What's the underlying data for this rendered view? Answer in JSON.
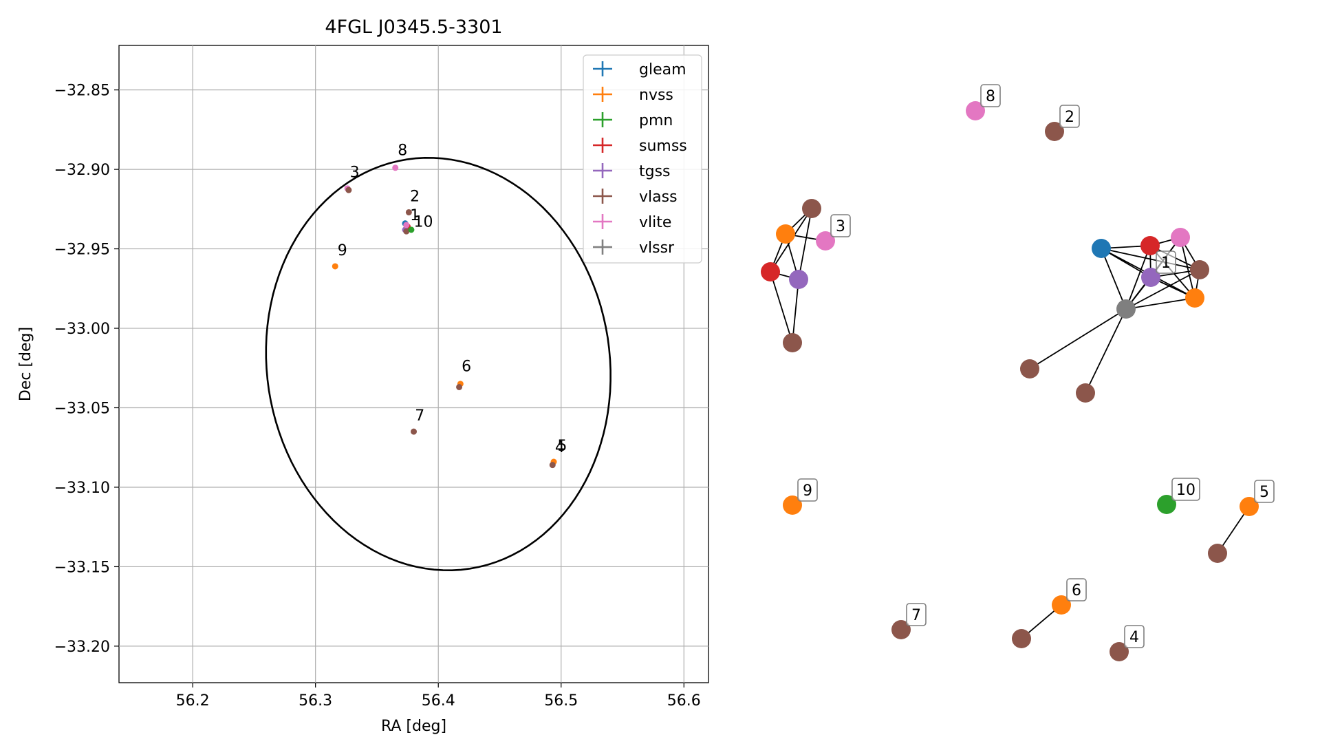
{
  "chart_data": [
    {
      "type": "scatter",
      "title": "4FGL J0345.5-3301",
      "xlabel": "RA [deg]",
      "ylabel": "Dec [deg]",
      "xlim": [
        56.14,
        56.62
      ],
      "ylim": [
        -33.223,
        -32.822
      ],
      "xticks": [
        56.2,
        56.3,
        56.4,
        56.5,
        56.6
      ],
      "yticks": [
        -32.85,
        -32.9,
        -32.95,
        -33.0,
        -33.05,
        -33.1,
        -33.15,
        -33.2
      ],
      "xtick_labels": [
        "56.2",
        "56.3",
        "56.4",
        "56.5",
        "56.6"
      ],
      "ytick_labels": [
        "−32.85",
        "−32.90",
        "−32.95",
        "−33.00",
        "−33.05",
        "−33.10",
        "−33.15",
        "−33.20"
      ],
      "grid": true,
      "legend_position": "top-right",
      "legend": [
        {
          "name": "gleam",
          "color": "#1f77b4"
        },
        {
          "name": "nvss",
          "color": "#ff7f0e"
        },
        {
          "name": "pmn",
          "color": "#2ca02c"
        },
        {
          "name": "sumss",
          "color": "#d62728"
        },
        {
          "name": "tgss",
          "color": "#9467bd"
        },
        {
          "name": "vlass",
          "color": "#8c564b"
        },
        {
          "name": "vlite",
          "color": "#e377c2"
        },
        {
          "name": "vlssr",
          "color": "#7f7f7f"
        }
      ],
      "ellipse": {
        "center": [
          56.4,
          -33.0225
        ],
        "semi_ra": 0.1415,
        "semi_dec": 0.1285,
        "angle_deg": -18
      },
      "points": [
        {
          "ra": 56.373,
          "dec": -32.934,
          "color": "#1f77b4"
        },
        {
          "ra": 56.374,
          "dec": -32.937,
          "color": "#ff7f0e"
        },
        {
          "ra": 56.375,
          "dec": -32.936,
          "color": "#d62728"
        },
        {
          "ra": 56.373,
          "dec": -32.938,
          "color": "#9467bd"
        },
        {
          "ra": 56.374,
          "dec": -32.935,
          "color": "#e377c2"
        },
        {
          "ra": 56.374,
          "dec": -32.939,
          "color": "#8c564b"
        },
        {
          "ra": 56.378,
          "dec": -32.938,
          "color": "#2ca02c"
        },
        {
          "ra": 56.376,
          "dec": -32.927,
          "color": "#8c564b"
        },
        {
          "ra": 56.326,
          "dec": -32.912,
          "color": "#e377c2"
        },
        {
          "ra": 56.327,
          "dec": -32.913,
          "color": "#8c564b"
        },
        {
          "ra": 56.365,
          "dec": -32.899,
          "color": "#e377c2"
        },
        {
          "ra": 56.316,
          "dec": -32.961,
          "color": "#ff7f0e"
        },
        {
          "ra": 56.418,
          "dec": -33.035,
          "color": "#ff7f0e"
        },
        {
          "ra": 56.417,
          "dec": -33.037,
          "color": "#8c564b"
        },
        {
          "ra": 56.38,
          "dec": -33.065,
          "color": "#8c564b"
        },
        {
          "ra": 56.494,
          "dec": -33.084,
          "color": "#ff7f0e"
        },
        {
          "ra": 56.493,
          "dec": -33.086,
          "color": "#8c564b"
        }
      ],
      "labels": [
        {
          "text": "1",
          "ra": 56.377,
          "dec": -32.932
        },
        {
          "text": "2",
          "ra": 56.377,
          "dec": -32.92
        },
        {
          "text": "3",
          "ra": 56.328,
          "dec": -32.905
        },
        {
          "text": "4",
          "ra": 56.495,
          "dec": -33.078
        },
        {
          "text": "5",
          "ra": 56.497,
          "dec": -33.077
        },
        {
          "text": "6",
          "ra": 56.419,
          "dec": -33.027
        },
        {
          "text": "7",
          "ra": 56.381,
          "dec": -33.058
        },
        {
          "text": "8",
          "ra": 56.367,
          "dec": -32.891
        },
        {
          "text": "9",
          "ra": 56.318,
          "dec": -32.954
        },
        {
          "text": "10",
          "ra": 56.38,
          "dec": -32.936
        }
      ]
    },
    {
      "type": "network",
      "nodes": [
        {
          "id": "a1",
          "color": "#1f77b4"
        },
        {
          "id": "a2",
          "color": "#d62728"
        },
        {
          "id": "a3",
          "color": "#e377c2"
        },
        {
          "id": "a4",
          "color": "#9467bd"
        },
        {
          "id": "a5",
          "color": "#8c564b"
        },
        {
          "id": "a6",
          "color": "#ff7f0e"
        },
        {
          "id": "a7",
          "color": "#7f7f7f"
        },
        {
          "id": "a8",
          "color": "#8c564b"
        },
        {
          "id": "a9",
          "color": "#8c564b"
        },
        {
          "id": "b1",
          "color": "#8c564b"
        },
        {
          "id": "b2",
          "color": "#ff7f0e"
        },
        {
          "id": "b3",
          "color": "#e377c2"
        },
        {
          "id": "b4",
          "color": "#d62728"
        },
        {
          "id": "b5",
          "color": "#9467bd"
        },
        {
          "id": "b6",
          "color": "#8c564b"
        },
        {
          "id": "n8",
          "color": "#e377c2"
        },
        {
          "id": "n2",
          "color": "#8c564b"
        },
        {
          "id": "n9",
          "color": "#ff7f0e"
        },
        {
          "id": "n10",
          "color": "#2ca02c"
        },
        {
          "id": "n5o",
          "color": "#ff7f0e"
        },
        {
          "id": "n5b",
          "color": "#8c564b"
        },
        {
          "id": "n7",
          "color": "#8c564b"
        },
        {
          "id": "n6o",
          "color": "#ff7f0e"
        },
        {
          "id": "n6b",
          "color": "#8c564b"
        },
        {
          "id": "n4",
          "color": "#8c564b"
        }
      ],
      "edges": [
        [
          "a7",
          "a1"
        ],
        [
          "a7",
          "a2"
        ],
        [
          "a7",
          "a3"
        ],
        [
          "a7",
          "a4"
        ],
        [
          "a7",
          "a5"
        ],
        [
          "a7",
          "a6"
        ],
        [
          "a7",
          "a8"
        ],
        [
          "a7",
          "a9"
        ],
        [
          "a1",
          "a2"
        ],
        [
          "a1",
          "a4"
        ],
        [
          "a1",
          "a5"
        ],
        [
          "a1",
          "a6"
        ],
        [
          "a2",
          "a3"
        ],
        [
          "a2",
          "a4"
        ],
        [
          "a2",
          "a5"
        ],
        [
          "a2",
          "a6"
        ],
        [
          "a3",
          "a4"
        ],
        [
          "a3",
          "a5"
        ],
        [
          "a3",
          "a6"
        ],
        [
          "a4",
          "a5"
        ],
        [
          "a4",
          "a6"
        ],
        [
          "a5",
          "a6"
        ],
        [
          "b1",
          "b2"
        ],
        [
          "b1",
          "b4"
        ],
        [
          "b1",
          "b5"
        ],
        [
          "b2",
          "b4"
        ],
        [
          "b2",
          "b5"
        ],
        [
          "b2",
          "b3"
        ],
        [
          "b4",
          "b5"
        ],
        [
          "b4",
          "b6"
        ],
        [
          "b5",
          "b6"
        ],
        [
          "n5o",
          "n5b"
        ],
        [
          "n6o",
          "n6b"
        ]
      ],
      "labels": [
        {
          "text": "1",
          "node": "a4"
        },
        {
          "text": "2",
          "node": "n2"
        },
        {
          "text": "3",
          "node": "b3"
        },
        {
          "text": "4",
          "node": "n4"
        },
        {
          "text": "5",
          "node": "n5o"
        },
        {
          "text": "6",
          "node": "n6o"
        },
        {
          "text": "7",
          "node": "n7"
        },
        {
          "text": "8",
          "node": "n8"
        },
        {
          "text": "9",
          "node": "n9"
        },
        {
          "text": "10",
          "node": "n10"
        }
      ]
    }
  ]
}
